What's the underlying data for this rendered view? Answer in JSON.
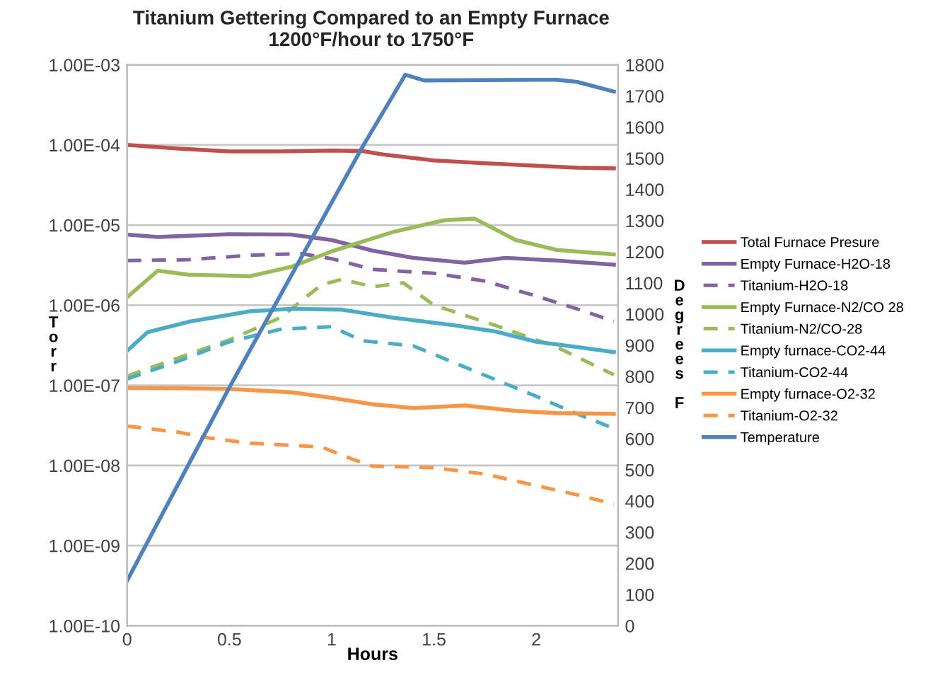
{
  "chart_data": {
    "type": "line",
    "title": "Titanium Gettering Compared to an Empty Furnace",
    "subtitle": "1200°F/hour to 1750°F",
    "xlabel": "Hours",
    "ylabel": "Torr",
    "y2label": "Degrees F",
    "log": "y",
    "grid": "y",
    "legend": "right",
    "marker": "none",
    "xlim": [
      0,
      2.4
    ],
    "xticks": [
      0,
      0.5,
      1,
      1.5,
      2
    ],
    "ylim": [
      1e-10,
      0.001
    ],
    "yticks": [
      {
        "value": 1e-10,
        "label": "1.00E-10"
      },
      {
        "value": 1e-09,
        "label": "1.00E-09"
      },
      {
        "value": 1e-08,
        "label": "1.00E-08"
      },
      {
        "value": 1e-07,
        "label": "1.00E-07"
      },
      {
        "value": 1e-06,
        "label": "1.00E-06"
      },
      {
        "value": 1e-05,
        "label": "1.00E-05"
      },
      {
        "value": 0.0001,
        "label": "1.00E-04"
      },
      {
        "value": 0.001,
        "label": "1.00E-03"
      }
    ],
    "y2lim": [
      0,
      1800
    ],
    "y2ticks": [
      0,
      100,
      200,
      300,
      400,
      500,
      600,
      700,
      800,
      900,
      1000,
      1100,
      1200,
      1300,
      1400,
      1500,
      1600,
      1700,
      1800
    ],
    "series": [
      {
        "name": "Total Furnace Presure",
        "color": "#c0504d",
        "line_style": "solid",
        "x": [
          0,
          0.25,
          0.5,
          0.75,
          1,
          1.15,
          1.25,
          1.5,
          1.75,
          2,
          2.2,
          2.38
        ],
        "values": [
          0.0001,
          9e-05,
          8.3e-05,
          8.3e-05,
          8.5e-05,
          8.4e-05,
          7.6e-05,
          6.4e-05,
          5.9e-05,
          5.5e-05,
          5.2e-05,
          5.1e-05
        ]
      },
      {
        "name": "Empty Furnace-H2O-18",
        "color": "#8064a2",
        "line_style": "solid",
        "x": [
          0,
          0.15,
          0.5,
          0.8,
          1.0,
          1.2,
          1.4,
          1.65,
          1.85,
          2.1,
          2.38
        ],
        "values": [
          7.6e-06,
          7.1e-06,
          7.7e-06,
          7.6e-06,
          6.5e-06,
          4.8e-06,
          3.9e-06,
          3.4e-06,
          3.9e-06,
          3.6e-06,
          3.2e-06
        ]
      },
      {
        "name": "Titanium-H2O-18",
        "color": "#8064a2",
        "line_style": "dashed",
        "x": [
          0,
          0.3,
          0.6,
          0.85,
          1.0,
          1.2,
          1.5,
          1.75,
          2.0,
          2.2,
          2.38
        ],
        "values": [
          3.6e-06,
          3.7e-06,
          4.2e-06,
          4.4e-06,
          3.8e-06,
          2.8e-06,
          2.5e-06,
          2e-06,
          1.3e-06,
          9e-07,
          6.3e-07
        ]
      },
      {
        "name": "Empty Furnace-N2/CO 28",
        "color": "#9bbb59",
        "line_style": "solid",
        "x": [
          0,
          0.15,
          0.3,
          0.6,
          0.8,
          1.0,
          1.3,
          1.55,
          1.7,
          1.9,
          2.1,
          2.38
        ],
        "values": [
          1.26e-06,
          2.7e-06,
          2.4e-06,
          2.3e-06,
          3e-06,
          4.7e-06,
          8.2e-06,
          1.15e-05,
          1.2e-05,
          6.5e-06,
          4.9e-06,
          4.3e-06
        ]
      },
      {
        "name": "Titanium-N2/CO-28",
        "color": "#9bbb59",
        "line_style": "dashed",
        "x": [
          0,
          0.25,
          0.5,
          0.75,
          0.95,
          1.05,
          1.2,
          1.35,
          1.5,
          1.8,
          2.1,
          2.38
        ],
        "values": [
          1.3e-07,
          2.2e-07,
          3.7e-07,
          7e-07,
          1.8e-06,
          2.1e-06,
          1.7e-06,
          1.9e-06,
          1e-06,
          5.6e-07,
          3e-07,
          1.35e-07
        ]
      },
      {
        "name": "Empty furnace-CO2-44",
        "color": "#4bacc6",
        "line_style": "solid",
        "x": [
          0,
          0.1,
          0.3,
          0.6,
          0.8,
          1.05,
          1.3,
          1.6,
          1.8,
          2.0,
          2.2,
          2.38
        ],
        "values": [
          2.7e-07,
          4.6e-07,
          6.2e-07,
          8.4e-07,
          9e-07,
          8.8e-07,
          7e-07,
          5.6e-07,
          4.7e-07,
          3.5e-07,
          3e-07,
          2.6e-07
        ]
      },
      {
        "name": "Titanium-CO2-44",
        "color": "#4bacc6",
        "line_style": "dashed",
        "x": [
          0,
          0.25,
          0.5,
          0.75,
          1.0,
          1.15,
          1.4,
          1.7,
          2.0,
          2.2,
          2.38
        ],
        "values": [
          1.2e-07,
          2e-07,
          3.5e-07,
          5e-07,
          5.4e-07,
          3.6e-07,
          3.1e-07,
          1.5e-07,
          7.3e-08,
          4.4e-08,
          2.9e-08
        ]
      },
      {
        "name": "Empty furnace-O2-32",
        "color": "#f79646",
        "line_style": "solid",
        "x": [
          0,
          0.25,
          0.5,
          0.8,
          1.0,
          1.2,
          1.4,
          1.65,
          1.9,
          2.1,
          2.38
        ],
        "values": [
          9.3e-08,
          9.2e-08,
          9e-08,
          8.2e-08,
          7e-08,
          5.8e-08,
          5.2e-08,
          5.6e-08,
          4.8e-08,
          4.5e-08,
          4.4e-08
        ]
      },
      {
        "name": "Titanium-O2-32",
        "color": "#f79646",
        "line_style": "dashed",
        "x": [
          0,
          0.25,
          0.4,
          0.6,
          0.95,
          1.1,
          1.2,
          1.5,
          1.75,
          2.0,
          2.2,
          2.38
        ],
        "values": [
          3.1e-08,
          2.6e-08,
          2.2e-08,
          1.9e-08,
          1.7e-08,
          1.2e-08,
          9.8e-09,
          9.4e-09,
          7.8e-09,
          5.6e-09,
          4.3e-09,
          3.3e-09
        ]
      },
      {
        "name": "Temperature",
        "color": "#4f81bd",
        "line_style": "solid",
        "axis": "y2",
        "x": [
          0,
          0.5,
          1.15,
          1.36,
          1.45,
          2.1,
          2.2,
          2.38
        ],
        "values": [
          145,
          765,
          1536,
          1768,
          1750,
          1752,
          1745,
          1714
        ]
      }
    ]
  }
}
